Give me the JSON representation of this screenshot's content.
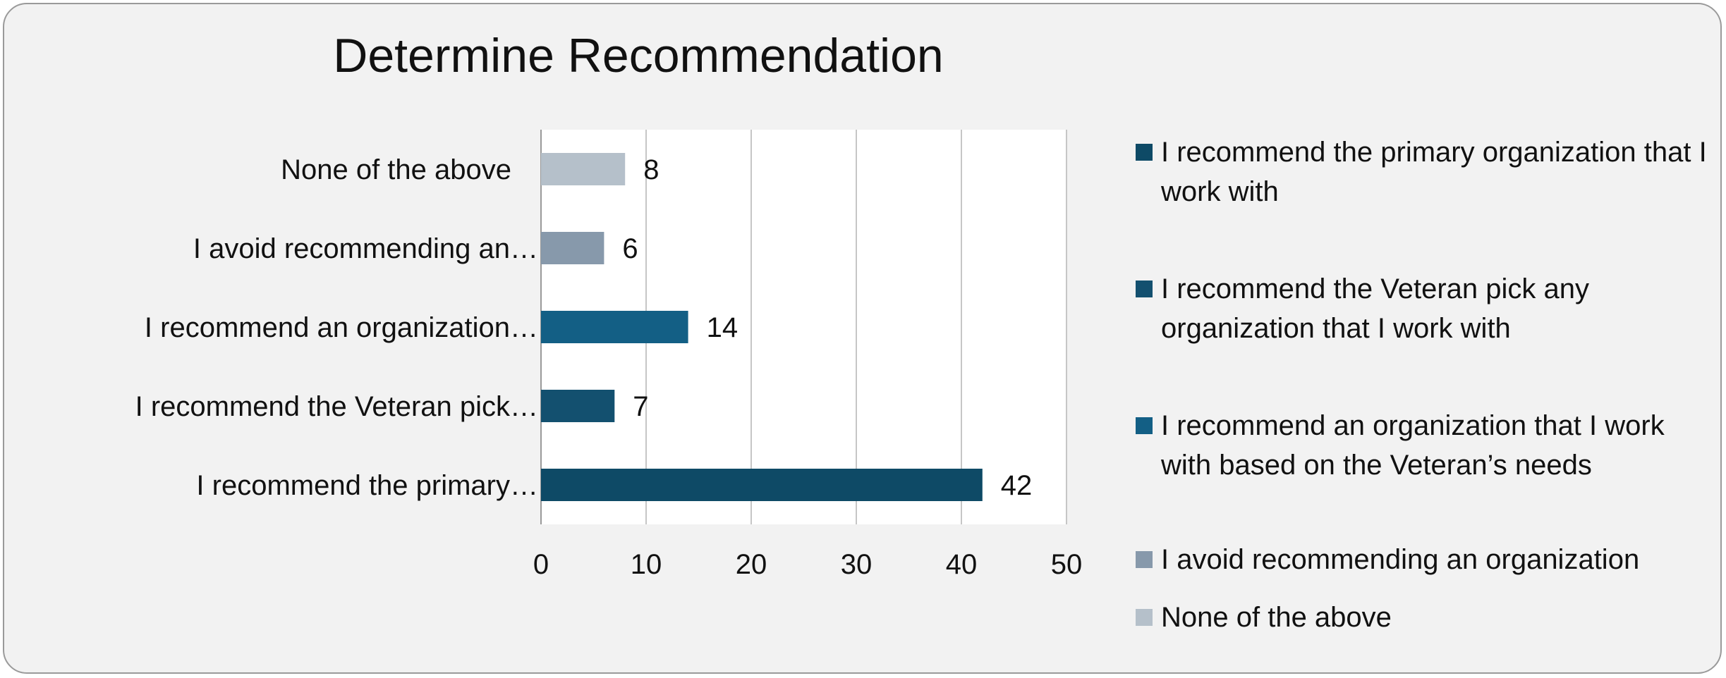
{
  "chart_data": {
    "type": "bar",
    "orientation": "horizontal",
    "title": "Determine Recommendation",
    "xlabel": "",
    "ylabel": "",
    "xlim": [
      0,
      50
    ],
    "x_ticks": [
      "0",
      "10",
      "20",
      "30",
      "40",
      "50"
    ],
    "grid": true,
    "legend_position": "right",
    "categories": [
      "I recommend the primary…",
      "I recommend the Veteran pick…",
      "I recommend an organization…",
      "I avoid recommending an…",
      "None of the above"
    ],
    "values": [
      42,
      7,
      14,
      6,
      8
    ],
    "data_labels": [
      "42",
      "7",
      "14",
      "6",
      "8"
    ],
    "colors": [
      "#0e4a66",
      "#13506f",
      "#135f85",
      "#8799ab",
      "#b5c0ca"
    ],
    "legend": [
      {
        "label": "I recommend the primary organization that I work with",
        "color": "#0e4a66"
      },
      {
        "label": "I recommend the Veteran pick any organization that I work with",
        "color": "#13506f"
      },
      {
        "label": "I recommend an organization that I work with based on the Veteran’s needs",
        "color": "#135f85"
      },
      {
        "label": "I avoid recommending an organization",
        "color": "#8799ab"
      },
      {
        "label": "None of the above",
        "color": "#b5c0ca"
      }
    ]
  }
}
